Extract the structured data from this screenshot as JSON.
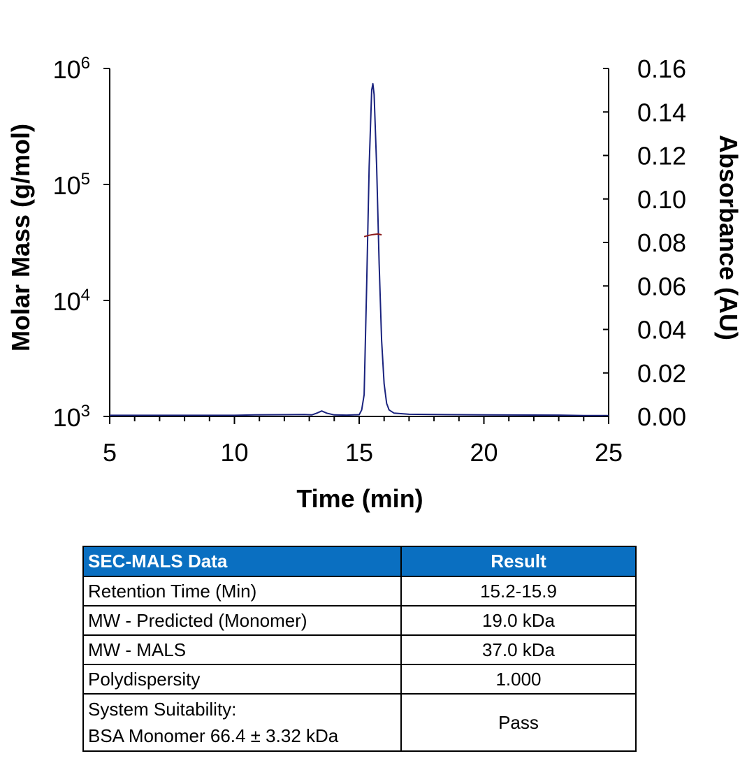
{
  "chart_data": {
    "type": "line",
    "xlabel": "Time (min)",
    "ylabel": "Molar Mass (g/mol)",
    "y2label": "Absorbance (AU)",
    "xlim": [
      5,
      25
    ],
    "x_ticks": [
      "5",
      "10",
      "15",
      "20",
      "25"
    ],
    "ylim": [
      1000,
      1000000
    ],
    "y_scale": "log",
    "y_ticks": [
      {
        "base": "10",
        "exp": "3"
      },
      {
        "base": "10",
        "exp": "4"
      },
      {
        "base": "10",
        "exp": "5"
      },
      {
        "base": "10",
        "exp": "6"
      }
    ],
    "y2lim": [
      0,
      0.16
    ],
    "y2_ticks": [
      "0.00",
      "0.02",
      "0.04",
      "0.06",
      "0.08",
      "0.10",
      "0.12",
      "0.14",
      "0.16"
    ],
    "grid": false,
    "series": [
      {
        "axis": "y2",
        "color": "#1a237e",
        "x": [
          5,
          10,
          10.8,
          12,
          12.8,
          13.1,
          13.3,
          13.5,
          13.7,
          14.0,
          14.5,
          15.0,
          15.1,
          15.2,
          15.3,
          15.4,
          15.5,
          15.55,
          15.6,
          15.7,
          15.8,
          15.9,
          16.0,
          16.1,
          16.2,
          16.4,
          17,
          20,
          23,
          24,
          25
        ],
        "values": [
          0.0005,
          0.0005,
          0.0007,
          0.0008,
          0.0009,
          0.0007,
          0.0015,
          0.0025,
          0.0015,
          0.0007,
          0.0006,
          0.0008,
          0.003,
          0.01,
          0.06,
          0.115,
          0.15,
          0.153,
          0.148,
          0.115,
          0.07,
          0.035,
          0.015,
          0.006,
          0.003,
          0.0015,
          0.001,
          0.0007,
          0.0006,
          0.0004,
          0.0004
        ]
      },
      {
        "axis": "y",
        "color": "#8b1a1a",
        "x": [
          15.2,
          15.4,
          15.55,
          15.75,
          15.9
        ],
        "values": [
          35500,
          36500,
          37000,
          37400,
          36800
        ]
      }
    ]
  },
  "table": {
    "headers": [
      "SEC-MALS Data",
      "Result"
    ],
    "rows": [
      {
        "label": "Retention Time (Min)",
        "value": "15.2-15.9"
      },
      {
        "label": "MW - Predicted (Monomer)",
        "value": "19.0 kDa"
      },
      {
        "label": "MW - MALS",
        "value": "37.0 kDa"
      },
      {
        "label": "Polydispersity",
        "value": "1.000"
      }
    ],
    "last_row": {
      "label_line1": "System Suitability:",
      "label_line2": "BSA Monomer 66.4 ± 3.32 kDa",
      "value": "Pass"
    }
  }
}
